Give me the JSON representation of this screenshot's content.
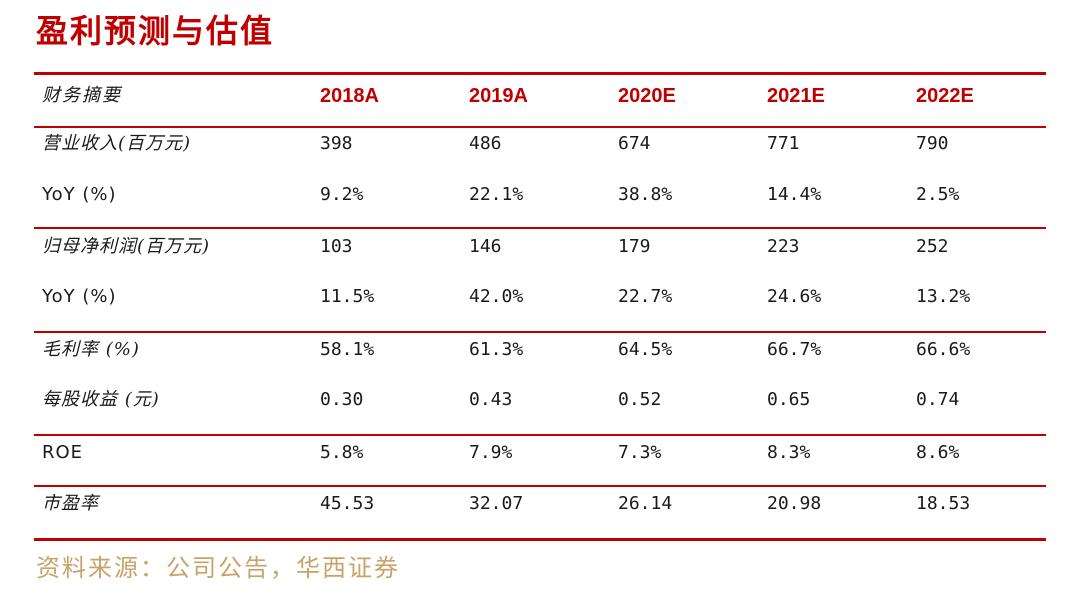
{
  "title": "盈利预测与估值",
  "header": {
    "label": "财务摘要",
    "years": [
      "2018A",
      "2019A",
      "2020E",
      "2021E",
      "2022E"
    ]
  },
  "rows": [
    {
      "label": "营业收入(百万元)",
      "values": [
        "398",
        "486",
        "674",
        "771",
        "790"
      ]
    },
    {
      "label": "YoY (%)",
      "values": [
        "9.2%",
        "22.1%",
        "38.8%",
        "14.4%",
        "2.5%"
      ]
    },
    {
      "label": "归母净利润(百万元)",
      "values": [
        "103",
        "146",
        "179",
        "223",
        "252"
      ]
    },
    {
      "label": "YoY (%)",
      "values": [
        "11.5%",
        "42.0%",
        "22.7%",
        "24.6%",
        "13.2%"
      ]
    },
    {
      "label": "毛利率 (%)",
      "values": [
        "58.1%",
        "61.3%",
        "64.5%",
        "66.7%",
        "66.6%"
      ]
    },
    {
      "label": "每股收益 (元)",
      "values": [
        "0.30",
        "0.43",
        "0.52",
        "0.65",
        "0.74"
      ]
    },
    {
      "label": "ROE",
      "values": [
        "5.8%",
        "7.9%",
        "7.3%",
        "8.3%",
        "8.6%"
      ]
    },
    {
      "label": "市盈率",
      "values": [
        "45.53",
        "32.07",
        "26.14",
        "20.98",
        "18.53"
      ]
    }
  ],
  "source": "资料来源：公司公告，华西证券",
  "colors": {
    "accent": "#c00000",
    "source_text": "#c9a26a"
  }
}
